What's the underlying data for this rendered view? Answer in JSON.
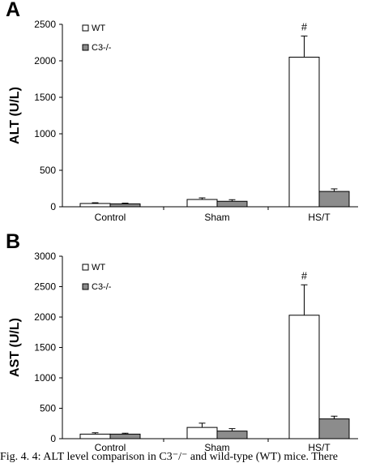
{
  "panels": [
    {
      "letter": "A"
    },
    {
      "letter": "B"
    }
  ],
  "chart_data": [
    {
      "type": "bar",
      "title": "",
      "xlabel": "",
      "ylabel": "ALT (U/L)",
      "ylim": [
        0,
        2500
      ],
      "yticks": [
        "0",
        "500",
        "1000",
        "1500",
        "2000",
        "2500"
      ],
      "categories": [
        "Control",
        "Sham",
        "HS/T"
      ],
      "series": [
        {
          "name": "WT",
          "color": "#ffffff",
          "values": [
            45,
            100,
            2050
          ],
          "errors": [
            10,
            22,
            290
          ]
        },
        {
          "name": "C3-/-",
          "color": "#8c8c8c",
          "values": [
            40,
            75,
            210
          ],
          "errors": [
            10,
            22,
            35
          ]
        }
      ],
      "annotations": [
        {
          "category": "HS/T",
          "series": "WT",
          "text": "#"
        }
      ],
      "legend": "top-left",
      "grid": false
    },
    {
      "type": "bar",
      "title": "",
      "xlabel": "",
      "ylabel": "AST (U/L)",
      "ylim": [
        0,
        3000
      ],
      "yticks": [
        "0",
        "500",
        "1000",
        "1500",
        "2000",
        "2500",
        "3000"
      ],
      "categories": [
        "Control",
        "Sham",
        "HS/T"
      ],
      "series": [
        {
          "name": "WT",
          "color": "#ffffff",
          "values": [
            75,
            185,
            2030
          ],
          "errors": [
            22,
            70,
            500
          ]
        },
        {
          "name": "C3-/-",
          "color": "#8c8c8c",
          "values": [
            75,
            125,
            325
          ],
          "errors": [
            15,
            40,
            45
          ]
        }
      ],
      "annotations": [
        {
          "category": "HS/T",
          "series": "WT",
          "text": "#"
        }
      ],
      "legend": "top-left",
      "grid": false
    }
  ],
  "caption": "Fig. 4. 4: ALT level comparison in C3⁻/⁻ and wild-type (WT) mice. There"
}
